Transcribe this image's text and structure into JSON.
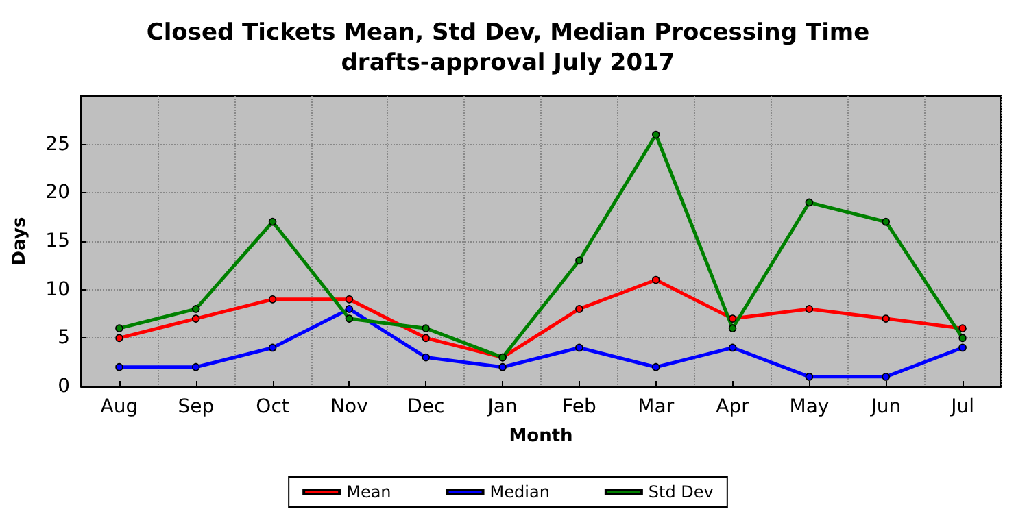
{
  "chart_data": {
    "type": "line",
    "title": "Closed Tickets Mean, Std Dev, Median Processing Time\ndrafts-approval July 2017",
    "xlabel": "Month",
    "ylabel": "Days",
    "categories": [
      "Aug",
      "Sep",
      "Oct",
      "Nov",
      "Dec",
      "Jan",
      "Feb",
      "Mar",
      "Apr",
      "May",
      "Jun",
      "Jul"
    ],
    "series": [
      {
        "name": "Mean",
        "color": "#ff0000",
        "values": [
          5,
          7,
          9,
          9,
          5,
          3,
          8,
          11,
          7,
          8,
          7,
          6
        ]
      },
      {
        "name": "Median",
        "color": "#0000ff",
        "values": [
          2,
          2,
          4,
          8,
          3,
          2,
          4,
          2,
          4,
          1,
          1,
          4
        ]
      },
      {
        "name": "Std Dev",
        "color": "#008000",
        "values": [
          6,
          8,
          17,
          7,
          6,
          3,
          13,
          26,
          6,
          19,
          17,
          5
        ]
      }
    ],
    "ylim": [
      0,
      30
    ],
    "yticks": [
      0,
      5,
      10,
      15,
      20,
      25
    ],
    "grid": true,
    "legend": "bottom",
    "marker": "circle",
    "line_style": "solid"
  }
}
